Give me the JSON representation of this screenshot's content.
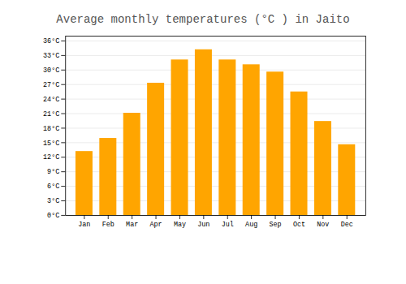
{
  "chart_data": {
    "type": "bar",
    "title": "Average monthly temperatures (°C ) in Jaito",
    "categories": [
      "Jan",
      "Feb",
      "Mar",
      "Apr",
      "May",
      "Jun",
      "Jul",
      "Aug",
      "Sep",
      "Oct",
      "Nov",
      "Dec"
    ],
    "values": [
      13.2,
      15.9,
      21.1,
      27.3,
      32.1,
      34.2,
      32.1,
      31.1,
      29.6,
      25.5,
      19.4,
      14.6
    ],
    "color": "#FFA500",
    "ylim": [
      0,
      37
    ],
    "yticks": [
      {
        "value": 0,
        "label": "0°C"
      },
      {
        "value": 3,
        "label": "3°C"
      },
      {
        "value": 6,
        "label": "6°C"
      },
      {
        "value": 9,
        "label": "9°C"
      },
      {
        "value": 12,
        "label": "12°C"
      },
      {
        "value": 15,
        "label": "15°C"
      },
      {
        "value": 18,
        "label": "18°C"
      },
      {
        "value": 21,
        "label": "21°C"
      },
      {
        "value": 24,
        "label": "24°C"
      },
      {
        "value": 27,
        "label": "27°C"
      },
      {
        "value": 30,
        "label": "30°C"
      },
      {
        "value": 33,
        "label": "33°C"
      },
      {
        "value": 36,
        "label": "36°C"
      }
    ],
    "grid": true
  }
}
